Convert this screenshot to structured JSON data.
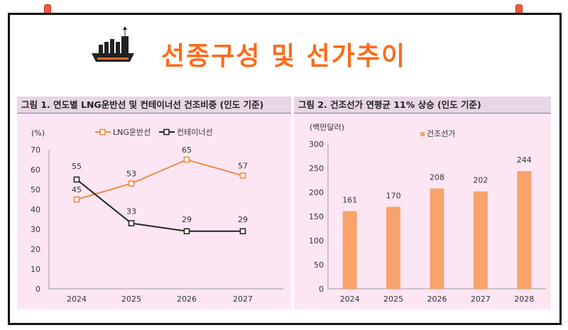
{
  "page_title": "선종구성 및 선가추이",
  "colors": {
    "title": "#ff6a1a",
    "lng_line": "#f6893e",
    "container_line": "#222222",
    "bar": "#f7a36b"
  },
  "chart_data": [
    {
      "type": "line",
      "heading": "그림 1. 연도별 LNG운반선 및 컨테이너선 건조비중 (인도 기준)",
      "unit_label": "(%)",
      "categories": [
        "2024",
        "2025",
        "2026",
        "2027"
      ],
      "ylim": [
        0,
        70
      ],
      "yticks": [
        "0",
        "10",
        "20",
        "30",
        "40",
        "50",
        "60",
        "70"
      ],
      "series": [
        {
          "name": "LNG운반선",
          "values": [
            45,
            53,
            65,
            57
          ]
        },
        {
          "name": "컨테이너선",
          "values": [
            55,
            33,
            29,
            29
          ]
        }
      ],
      "legend": "top"
    },
    {
      "type": "bar",
      "heading": "그림 2. 건조선가 연평균 11% 상승 (인도 기준)",
      "unit_label": "(백만달러)",
      "categories": [
        "2024",
        "2025",
        "2026",
        "2027",
        "2028"
      ],
      "ylim": [
        0,
        300
      ],
      "yticks": [
        "0",
        "50",
        "100",
        "150",
        "200",
        "250",
        "300"
      ],
      "series": [
        {
          "name": "건조선가",
          "values": [
            161,
            170,
            208,
            202,
            244
          ]
        }
      ],
      "legend": "top"
    }
  ]
}
